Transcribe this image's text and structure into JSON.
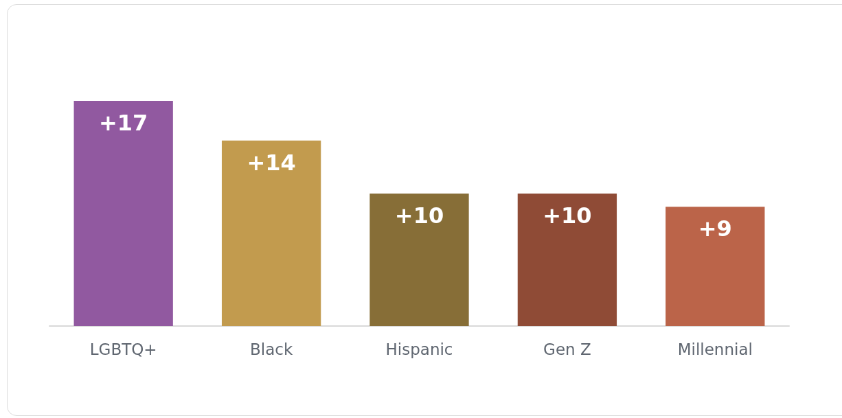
{
  "chart_data": {
    "type": "bar",
    "categories": [
      "LGBTQ+",
      "Black",
      "Hispanic",
      "Gen Z",
      "Millennial"
    ],
    "values": [
      17,
      14,
      10,
      10,
      9
    ],
    "colors": [
      "#9159a0",
      "#c29b4e",
      "#876e37",
      "#8f4b36",
      "#bb6449"
    ],
    "value_labels": [
      "+17",
      "+14",
      "+10",
      "+10",
      "+9"
    ]
  }
}
